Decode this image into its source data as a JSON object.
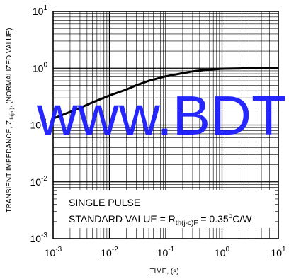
{
  "chart_data": {
    "type": "line",
    "x_scale": "log",
    "y_scale": "log",
    "xlim": [
      0.001,
      10
    ],
    "ylim": [
      0.001,
      10
    ],
    "grid": true,
    "xlabel": "TIME, (s)",
    "ylabel": {
      "prefix": "TRANSIENT  IMPEDANCE, Z",
      "sub": "th(j-c)",
      "suffix": ", (NORMALIZED VALUE)"
    },
    "x_ticks": [
      {
        "value": 0.001,
        "base": "10",
        "exp": "-3"
      },
      {
        "value": 0.01,
        "base": "10",
        "exp": "-2"
      },
      {
        "value": 0.1,
        "base": "10",
        "exp": "-1"
      },
      {
        "value": 1,
        "base": "10",
        "exp": "0"
      },
      {
        "value": 10,
        "base": "10",
        "exp": "1"
      }
    ],
    "y_ticks": [
      {
        "value": 10,
        "base": "10",
        "exp": "1"
      },
      {
        "value": 1,
        "base": "10",
        "exp": "0"
      },
      {
        "value": 0.1,
        "base": "10",
        "exp": "-1"
      },
      {
        "value": 0.01,
        "base": "10",
        "exp": "-2"
      },
      {
        "value": 0.001,
        "base": "10",
        "exp": "-3"
      }
    ],
    "series": [
      {
        "x": [
          0.001,
          0.002,
          0.003,
          0.005,
          0.01,
          0.02,
          0.03,
          0.05,
          0.1,
          0.2,
          0.3,
          0.5,
          1,
          2,
          3,
          5,
          10
        ],
        "y": [
          0.13,
          0.17,
          0.2,
          0.25,
          0.33,
          0.42,
          0.5,
          0.6,
          0.72,
          0.82,
          0.88,
          0.93,
          0.98,
          0.99,
          1.0,
          1.0,
          1.0
        ]
      }
    ],
    "annotation": {
      "line1": "SINGLE PULSE",
      "line2_prefix": "STANDARD VALUE = R",
      "line2_sub": "th(j-c)F",
      "line2_value": " = 0.35",
      "line2_sup": "o",
      "line2_unit": "C/W"
    },
    "watermark": "www.BDT"
  }
}
